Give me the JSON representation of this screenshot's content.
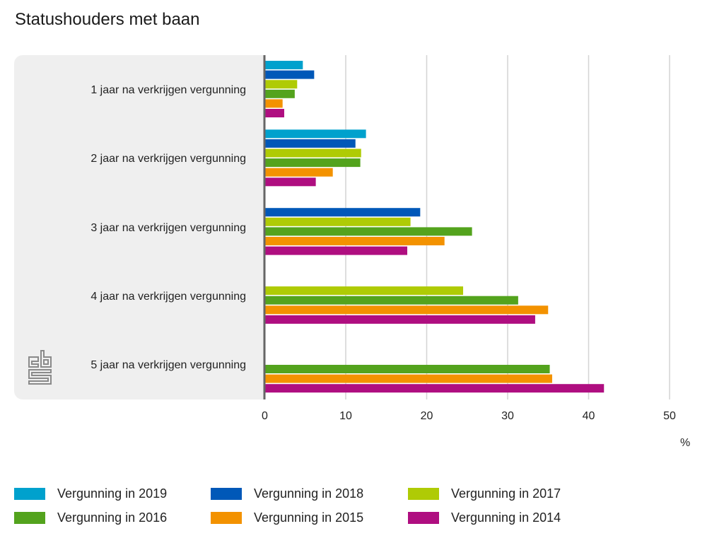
{
  "chart_data": {
    "type": "bar",
    "orientation": "horizontal",
    "title": "Statushouders met baan",
    "xlabel": "%",
    "ylabel": "",
    "xlim": [
      0,
      50
    ],
    "xticks": [
      "0",
      "10",
      "20",
      "30",
      "40",
      "50"
    ],
    "grid": true,
    "legend_position": "bottom",
    "categories": [
      "1 jaar na verkrijgen vergunning",
      "2 jaar na verkrijgen vergunning",
      "3 jaar na verkrijgen vergunning",
      "4 jaar na verkrijgen vergunning",
      "5 jaar na verkrijgen vergunning"
    ],
    "series": [
      {
        "name": "Vergunning in 2019",
        "color": "#00a1cd",
        "values": [
          4.7,
          12.5,
          null,
          null,
          null
        ]
      },
      {
        "name": "Vergunning in 2018",
        "color": "#0058b8",
        "values": [
          6.1,
          11.2,
          19.2,
          null,
          null
        ]
      },
      {
        "name": "Vergunning in 2017",
        "color": "#afcb05",
        "values": [
          4.0,
          11.9,
          18.0,
          24.5,
          null
        ]
      },
      {
        "name": "Vergunning in 2016",
        "color": "#53a31d",
        "values": [
          3.7,
          11.8,
          25.6,
          31.3,
          35.2
        ]
      },
      {
        "name": "Vergunning in 2015",
        "color": "#f39200",
        "values": [
          2.2,
          8.4,
          22.2,
          35.0,
          35.5
        ]
      },
      {
        "name": "Vergunning in 2014",
        "color": "#af0e80",
        "values": [
          2.4,
          6.3,
          17.6,
          33.4,
          41.9
        ]
      }
    ]
  },
  "logo": {
    "text": "cbs"
  }
}
